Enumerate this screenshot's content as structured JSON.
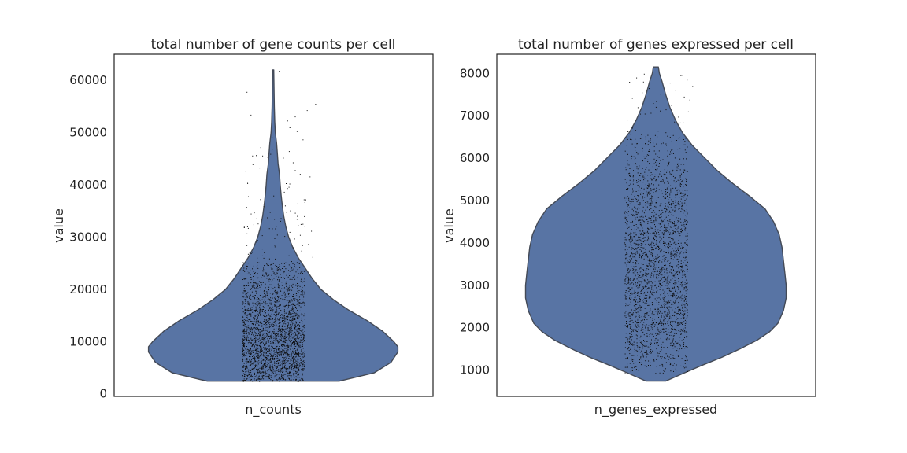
{
  "chart_data": [
    {
      "type": "violin",
      "title": "total number of gene counts per cell",
      "xlabel": "n_counts",
      "ylabel": "value",
      "ylim": [
        -500,
        65000
      ],
      "yticks": [
        0,
        10000,
        20000,
        30000,
        40000,
        50000,
        60000
      ],
      "ytick_labels": [
        "0",
        "10000",
        "20000",
        "30000",
        "40000",
        "50000",
        "60000"
      ],
      "color": "#5874a4",
      "series": [
        {
          "category": "n_counts",
          "min": 2400,
          "max": 62000,
          "density": [
            [
              2400,
              0.47
            ],
            [
              4000,
              0.72
            ],
            [
              6000,
              0.84
            ],
            [
              8000,
              0.89
            ],
            [
              9000,
              0.89
            ],
            [
              10000,
              0.86
            ],
            [
              12000,
              0.78
            ],
            [
              14000,
              0.67
            ],
            [
              16000,
              0.54
            ],
            [
              18000,
              0.43
            ],
            [
              20000,
              0.34
            ],
            [
              22000,
              0.28
            ],
            [
              24000,
              0.23
            ],
            [
              26000,
              0.18
            ],
            [
              28000,
              0.14
            ],
            [
              30000,
              0.11
            ],
            [
              32000,
              0.09
            ],
            [
              34000,
              0.075
            ],
            [
              36000,
              0.065
            ],
            [
              38000,
              0.057
            ],
            [
              40000,
              0.05
            ],
            [
              42000,
              0.045
            ],
            [
              44000,
              0.035
            ],
            [
              46000,
              0.03
            ],
            [
              48000,
              0.024
            ],
            [
              50000,
              0.015
            ],
            [
              52000,
              0.011
            ],
            [
              55000,
              0.008
            ],
            [
              58000,
              0.006
            ],
            [
              62000,
              0.004
            ]
          ],
          "points": [
            [
              0.04,
              61800
            ],
            [
              0.24,
              54300
            ],
            [
              0.3,
              55500
            ],
            [
              -0.19,
              57800
            ],
            [
              0.1,
              52300
            ],
            [
              0.11,
              50400
            ],
            [
              -0.01,
              49100
            ],
            [
              0.21,
              48700
            ],
            [
              -0.15,
              45600
            ],
            [
              0.07,
              45200
            ],
            [
              0.14,
              44300
            ],
            [
              -0.1,
              43300
            ],
            [
              0.19,
              42100
            ],
            [
              0.26,
              41600
            ],
            [
              -0.05,
              41200
            ],
            [
              0.09,
              40300
            ],
            [
              0.02,
              39100
            ],
            [
              -0.18,
              37800
            ],
            [
              0.23,
              37200
            ],
            [
              0.17,
              36400
            ],
            [
              -0.07,
              35900
            ],
            [
              0.12,
              35100
            ],
            [
              -0.16,
              34500
            ],
            [
              0.22,
              34000
            ],
            [
              0.05,
              33100
            ],
            [
              -0.11,
              32600
            ],
            [
              0.18,
              32200
            ],
            [
              -0.03,
              31700
            ],
            [
              0.27,
              31200
            ],
            [
              -0.19,
              30700
            ],
            [
              0.08,
              30200
            ],
            [
              0.15,
              29700
            ],
            [
              -0.12,
              29100
            ],
            [
              0.25,
              28700
            ],
            [
              0.01,
              28200
            ],
            [
              -0.08,
              27800
            ],
            [
              0.2,
              27400
            ],
            [
              -0.17,
              27000
            ],
            [
              0.11,
              26500
            ],
            [
              0.28,
              26200
            ]
          ]
        }
      ]
    },
    {
      "type": "violin",
      "title": "total number of genes expressed per cell",
      "xlabel": "n_genes_expressed",
      "ylabel": "value",
      "ylim": [
        380,
        8450
      ],
      "yticks": [
        1000,
        2000,
        3000,
        4000,
        5000,
        6000,
        7000,
        8000
      ],
      "ytick_labels": [
        "1000",
        "2000",
        "3000",
        "4000",
        "5000",
        "6000",
        "7000",
        "8000"
      ],
      "color": "#5874a4",
      "series": [
        {
          "category": "n_genes_expressed",
          "min": 740,
          "max": 8150,
          "density": [
            [
              740,
              0.07
            ],
            [
              900,
              0.18
            ],
            [
              1100,
              0.32
            ],
            [
              1300,
              0.47
            ],
            [
              1500,
              0.6
            ],
            [
              1700,
              0.72
            ],
            [
              1900,
              0.81
            ],
            [
              2100,
              0.87
            ],
            [
              2400,
              0.91
            ],
            [
              2700,
              0.93
            ],
            [
              3000,
              0.93
            ],
            [
              3300,
              0.92
            ],
            [
              3600,
              0.91
            ],
            [
              3900,
              0.9
            ],
            [
              4200,
              0.88
            ],
            [
              4500,
              0.84
            ],
            [
              4800,
              0.78
            ],
            [
              5100,
              0.67
            ],
            [
              5400,
              0.55
            ],
            [
              5700,
              0.44
            ],
            [
              6000,
              0.35
            ],
            [
              6300,
              0.26
            ],
            [
              6600,
              0.19
            ],
            [
              6900,
              0.14
            ],
            [
              7200,
              0.1
            ],
            [
              7500,
              0.07
            ],
            [
              7800,
              0.045
            ],
            [
              8000,
              0.025
            ],
            [
              8150,
              0.018
            ]
          ],
          "points": [
            [
              0.19,
              7950
            ],
            [
              -0.14,
              7900
            ],
            [
              0.22,
              7850
            ],
            [
              -0.19,
              7800
            ],
            [
              0.1,
              7780
            ],
            [
              0.26,
              7700
            ],
            [
              -0.05,
              7650
            ],
            [
              0.14,
              7600
            ],
            [
              -0.1,
              7550
            ],
            [
              0.03,
              7520
            ],
            [
              0.2,
              7450
            ],
            [
              -0.17,
              7420
            ],
            [
              0.24,
              7380
            ],
            [
              -0.02,
              7300
            ],
            [
              0.11,
              7250
            ],
            [
              -0.13,
              7200
            ],
            [
              0.07,
              7150
            ],
            [
              0.23,
              7100
            ],
            [
              -0.08,
              7050
            ],
            [
              0.16,
              7000
            ]
          ]
        }
      ]
    }
  ]
}
